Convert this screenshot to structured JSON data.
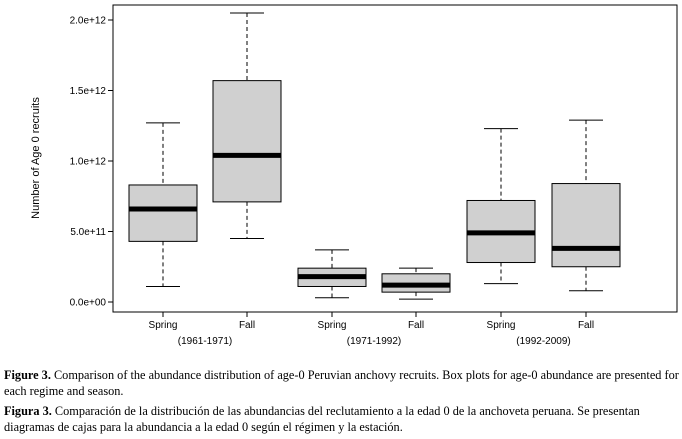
{
  "chart_data": {
    "type": "box",
    "ylabel": "Number of Age 0 recruits",
    "ylim": [
      0,
      2100000000000
    ],
    "yticks": [
      {
        "value": 0,
        "label": "0.0e+00"
      },
      {
        "value": 500000000000,
        "label": "5.0e+11"
      },
      {
        "value": 1000000000000,
        "label": "1.0e+12"
      },
      {
        "value": 1500000000000,
        "label": "1.5e+12"
      },
      {
        "value": 2000000000000,
        "label": "2.0e+12"
      }
    ],
    "boxes": [
      {
        "season": "Spring",
        "regime": "(1961-1971)",
        "min": 110000000000,
        "q1": 430000000000,
        "median": 660000000000,
        "q3": 830000000000,
        "max": 1270000000000
      },
      {
        "season": "Fall",
        "regime": "(1961-1971)",
        "min": 450000000000,
        "q1": 710000000000,
        "median": 1040000000000,
        "q3": 1570000000000,
        "max": 2050000000000
      },
      {
        "season": "Spring",
        "regime": "(1971-1992)",
        "min": 30000000000,
        "q1": 110000000000,
        "median": 180000000000,
        "q3": 240000000000,
        "max": 370000000000
      },
      {
        "season": "Fall",
        "regime": "(1971-1992)",
        "min": 20000000000,
        "q1": 70000000000,
        "median": 120000000000,
        "q3": 200000000000,
        "max": 240000000000
      },
      {
        "season": "Spring",
        "regime": "(1992-2009)",
        "min": 130000000000,
        "q1": 280000000000,
        "median": 490000000000,
        "q3": 720000000000,
        "max": 1230000000000
      },
      {
        "season": "Fall",
        "regime": "(1992-2009)",
        "min": 80000000000,
        "q1": 250000000000,
        "median": 380000000000,
        "q3": 840000000000,
        "max": 1290000000000
      }
    ],
    "regimes": [
      "(1961-1971)",
      "(1971-1992)",
      "(1992-2009)"
    ],
    "box_fill": "#d0d0d0",
    "grid": false
  },
  "caption": {
    "en_label": "Figure 3.",
    "en_text": " Comparison of the abundance distribution of age-0 Peruvian anchovy recruits. Box plots for age-0 abundance are presented for each regime and season.",
    "es_label": "Figura 3.",
    "es_text": " Comparación de la distribución de las abundancias del reclutamiento a la edad 0 de la anchoveta peruana. Se presentan diagramas de cajas para la abundancia a la edad 0 según el régimen y la estación."
  }
}
